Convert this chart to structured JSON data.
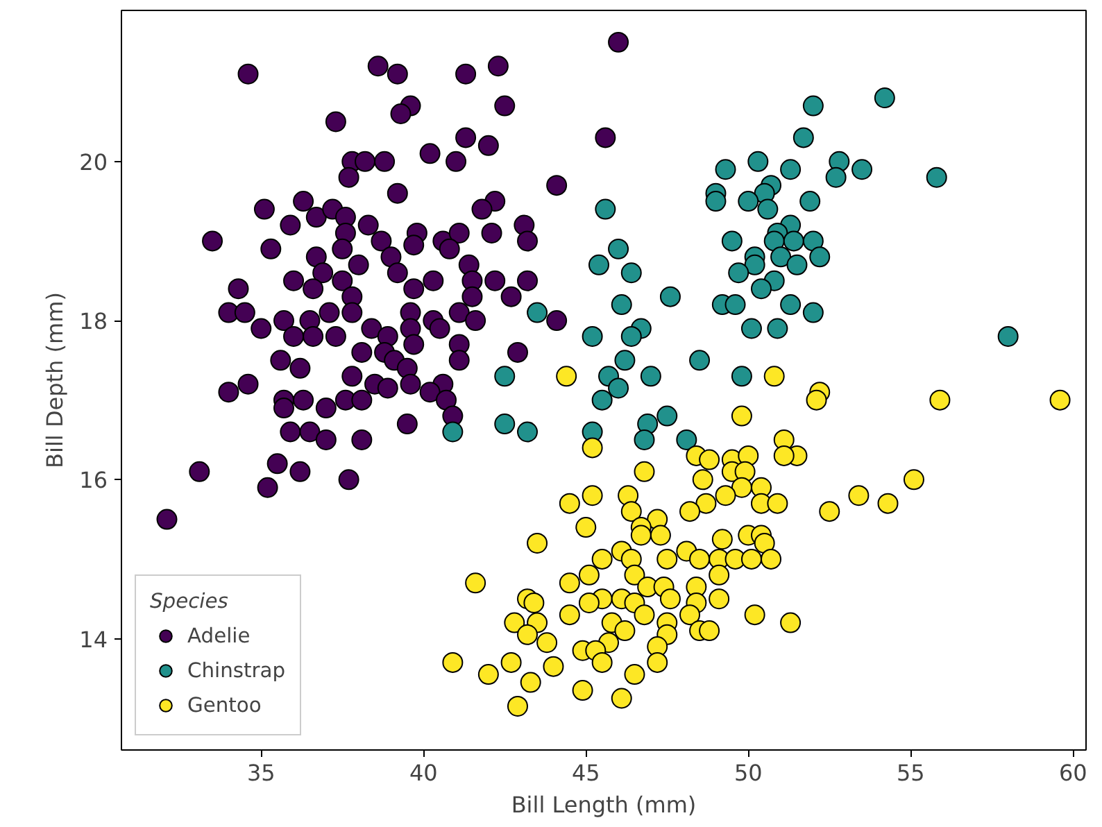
{
  "chart_data": {
    "type": "scatter",
    "xlabel": "Bill Length (mm)",
    "ylabel": "Bill Depth (mm)",
    "legend_title": "Species",
    "legend": "bottom left",
    "grid": false,
    "marker": "circle",
    "xlim": [
      30.7,
      60.4
    ],
    "ylim": [
      12.6,
      21.9
    ],
    "xticks": [
      35,
      40,
      45,
      50,
      55,
      60
    ],
    "yticks": [
      14,
      16,
      18,
      20
    ],
    "series": [
      {
        "name": "Adelie",
        "color": "#440154",
        "x": [
          34.6,
          38.6,
          39.2,
          41.3,
          42.3,
          39.6,
          39.3,
          42.5,
          37.3,
          41.3,
          42.0,
          40.2,
          41.0,
          37.8,
          38.2,
          38.8,
          37.7,
          44.1,
          39.2,
          42.2,
          41.8,
          35.1,
          36.3,
          36.7,
          37.2,
          35.9,
          37.6,
          38.3,
          43.1,
          43.2,
          42.1,
          33.5,
          35.3,
          37.6,
          38.7,
          39.8,
          40.6,
          41.1,
          37.5,
          36.7,
          39.0,
          39.7,
          40.8,
          38.0,
          39.2,
          41.4,
          36.0,
          36.9,
          37.5,
          36.6,
          39.7,
          40.3,
          41.5,
          42.2,
          43.2,
          42.7,
          34.3,
          37.8,
          41.5,
          34.0,
          34.5,
          37.1,
          37.8,
          39.6,
          41.1,
          44.1,
          41.6,
          35.0,
          35.7,
          36.5,
          38.4,
          40.3,
          40.5,
          39.6,
          36.0,
          36.6,
          37.3,
          38.9,
          39.7,
          42.9,
          38.1,
          38.8,
          41.1,
          41.1,
          35.6,
          39.1,
          39.5,
          37.8,
          36.2,
          38.5,
          39.6,
          40.6,
          34.0,
          34.6,
          35.7,
          36.3,
          37.0,
          37.6,
          38.1,
          38.9,
          40.2,
          40.7,
          40.9,
          35.7,
          39.5,
          35.9,
          36.5,
          37.0,
          38.1,
          33.1,
          35.5,
          36.2,
          37.7,
          35.2,
          32.1,
          46.0,
          45.6
        ],
        "values": [
          21.1,
          21.2,
          21.1,
          21.1,
          21.2,
          20.7,
          20.6,
          20.7,
          20.5,
          20.3,
          20.2,
          20.1,
          20.0,
          20.0,
          20.0,
          20.0,
          19.8,
          19.7,
          19.6,
          19.5,
          19.4,
          19.4,
          19.5,
          19.3,
          19.4,
          19.2,
          19.3,
          19.2,
          19.2,
          19.0,
          19.1,
          19.0,
          18.9,
          19.1,
          19.0,
          19.1,
          19.0,
          19.1,
          18.9,
          18.8,
          18.8,
          18.95,
          18.9,
          18.7,
          18.6,
          18.7,
          18.5,
          18.6,
          18.5,
          18.4,
          18.4,
          18.5,
          18.5,
          18.5,
          18.5,
          18.3,
          18.4,
          18.3,
          18.3,
          18.1,
          18.1,
          18.1,
          18.1,
          18.1,
          18.1,
          18.0,
          18.0,
          17.9,
          18.0,
          18.0,
          17.9,
          18.0,
          17.9,
          17.9,
          17.8,
          17.8,
          17.8,
          17.8,
          17.7,
          17.6,
          17.6,
          17.6,
          17.7,
          17.5,
          17.5,
          17.5,
          17.4,
          17.3,
          17.4,
          17.2,
          17.2,
          17.2,
          17.1,
          17.2,
          17.0,
          17.0,
          16.9,
          17.0,
          17.0,
          17.15,
          17.1,
          17.0,
          16.8,
          16.9,
          16.7,
          16.6,
          16.6,
          16.5,
          16.5,
          16.1,
          16.2,
          16.1,
          16.0,
          15.9,
          15.5,
          21.5,
          20.3
        ]
      },
      {
        "name": "Chinstrap",
        "color": "#21918c",
        "x": [
          52.0,
          54.2,
          51.7,
          49.3,
          50.3,
          51.3,
          52.8,
          52.7,
          53.5,
          55.8,
          49.0,
          49.0,
          50.7,
          50.5,
          50.0,
          50.6,
          51.9,
          45.6,
          49.5,
          51.3,
          50.9,
          50.8,
          51.4,
          52.0,
          50.2,
          51.0,
          51.5,
          52.2,
          50.2,
          49.7,
          50.8,
          50.4,
          46.0,
          45.4,
          46.4,
          47.6,
          49.2,
          49.6,
          51.3,
          52.0,
          46.1,
          43.5,
          50.1,
          50.9,
          46.7,
          46.4,
          45.2,
          48.5,
          46.2,
          49.8,
          47.0,
          45.7,
          42.5,
          46.0,
          45.5,
          47.5,
          42.5,
          43.2,
          46.9,
          45.2,
          46.8,
          48.1,
          40.9,
          58.0
        ],
        "values": [
          20.7,
          20.8,
          20.3,
          19.9,
          20.0,
          19.9,
          20.0,
          19.8,
          19.9,
          19.8,
          19.6,
          19.5,
          19.7,
          19.6,
          19.5,
          19.4,
          19.5,
          19.4,
          19.0,
          19.2,
          19.1,
          19.0,
          19.0,
          19.0,
          18.8,
          18.8,
          18.7,
          18.8,
          18.7,
          18.6,
          18.5,
          18.4,
          18.9,
          18.7,
          18.6,
          18.3,
          18.2,
          18.2,
          18.2,
          18.1,
          18.2,
          18.1,
          17.9,
          17.9,
          17.9,
          17.8,
          17.8,
          17.5,
          17.5,
          17.3,
          17.3,
          17.3,
          17.3,
          17.15,
          17.0,
          16.8,
          16.7,
          16.6,
          16.7,
          16.6,
          16.5,
          16.5,
          16.6,
          17.8
        ]
      },
      {
        "name": "Gentoo",
        "color": "#fde725",
        "x": [
          44.4,
          50.8,
          52.2,
          52.1,
          49.8,
          45.2,
          51.1,
          51.5,
          51.1,
          48.4,
          48.8,
          49.5,
          50.0,
          46.8,
          48.6,
          49.5,
          49.9,
          49.8,
          50.4,
          49.3,
          48.7,
          48.2,
          50.4,
          50.9,
          52.5,
          46.3,
          45.2,
          44.5,
          46.4,
          47.2,
          45.0,
          46.7,
          46.7,
          47.3,
          50.0,
          50.4,
          50.5,
          49.2,
          43.5,
          46.1,
          45.5,
          46.4,
          47.5,
          48.1,
          48.5,
          49.1,
          49.6,
          50.1,
          50.7,
          45.1,
          46.5,
          49.1,
          41.6,
          44.5,
          46.9,
          47.4,
          48.4,
          43.2,
          45.5,
          46.1,
          47.6,
          49.1,
          43.4,
          45.1,
          46.5,
          48.4,
          44.5,
          46.8,
          48.2,
          50.2,
          51.3,
          42.8,
          43.5,
          45.8,
          47.5,
          48.5,
          48.8,
          43.2,
          43.8,
          47.5,
          46.2,
          45.7,
          44.9,
          45.3,
          47.2,
          40.9,
          42.7,
          45.5,
          47.2,
          44.0,
          42.0,
          46.5,
          43.3,
          44.9,
          46.1,
          42.9,
          55.9,
          59.6,
          55.1,
          53.4,
          54.3
        ],
        "values": [
          17.3,
          17.3,
          17.1,
          17.0,
          16.8,
          16.4,
          16.5,
          16.3,
          16.3,
          16.3,
          16.25,
          16.25,
          16.3,
          16.1,
          16.0,
          16.1,
          16.1,
          15.9,
          15.9,
          15.8,
          15.7,
          15.6,
          15.7,
          15.7,
          15.6,
          15.8,
          15.8,
          15.7,
          15.6,
          15.5,
          15.4,
          15.4,
          15.3,
          15.3,
          15.3,
          15.3,
          15.2,
          15.25,
          15.2,
          15.1,
          15.0,
          15.0,
          15.0,
          15.1,
          15.0,
          15.0,
          15.0,
          15.0,
          15.0,
          14.8,
          14.8,
          14.8,
          14.7,
          14.7,
          14.65,
          14.65,
          14.65,
          14.5,
          14.5,
          14.5,
          14.5,
          14.5,
          14.45,
          14.45,
          14.45,
          14.45,
          14.3,
          14.3,
          14.3,
          14.3,
          14.2,
          14.2,
          14.2,
          14.2,
          14.2,
          14.1,
          14.1,
          14.05,
          13.95,
          14.05,
          14.1,
          13.95,
          13.85,
          13.85,
          13.9,
          13.7,
          13.7,
          13.7,
          13.7,
          13.65,
          13.55,
          13.55,
          13.45,
          13.35,
          13.25,
          13.15,
          17.0,
          17.0,
          16.0,
          15.8,
          15.7
        ]
      }
    ]
  }
}
